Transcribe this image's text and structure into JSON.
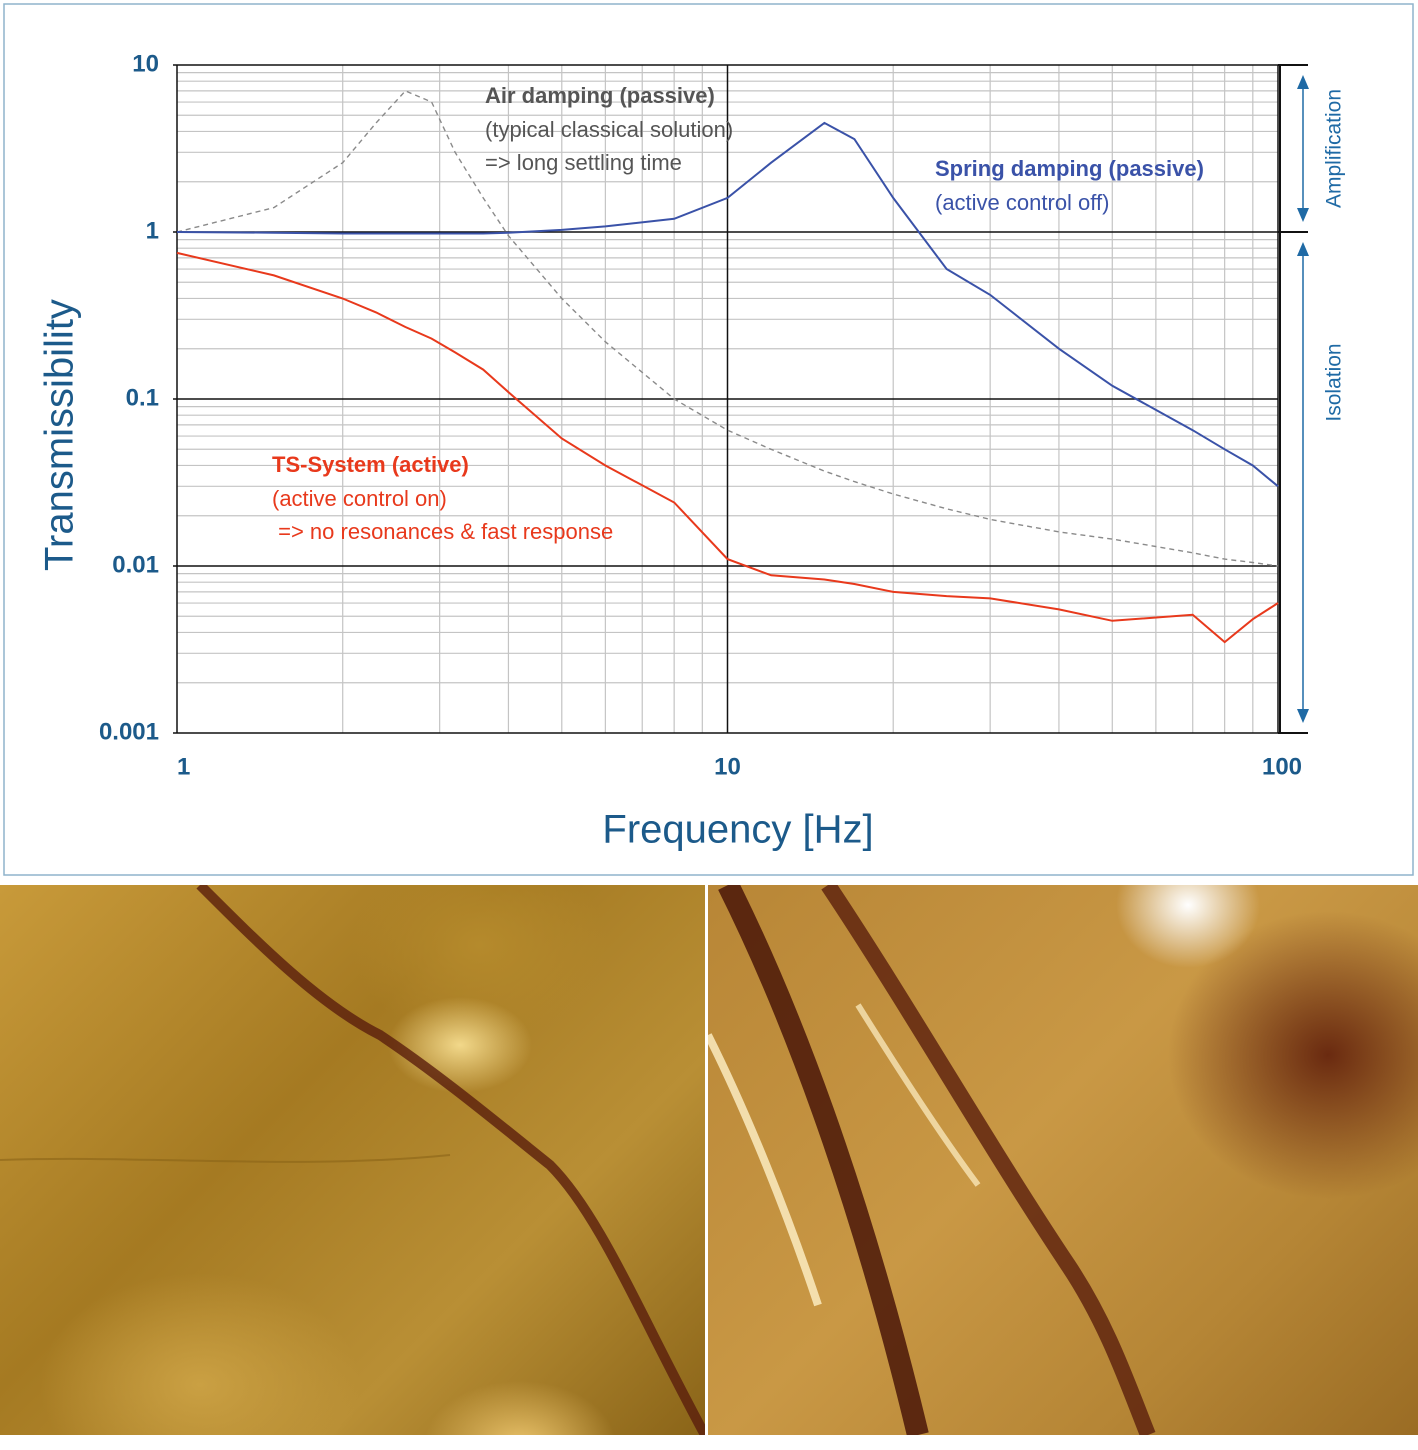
{
  "chart_data": {
    "type": "line",
    "xlabel": "Frequency [Hz]",
    "ylabel": "Transmissibility",
    "log_x": true,
    "log_y": true,
    "grid": true,
    "xlim": [
      1,
      100
    ],
    "ylim": [
      0.001,
      10
    ],
    "xticks": [
      1,
      10,
      100
    ],
    "yticks": [
      0.001,
      0.01,
      0.1,
      1,
      10
    ],
    "x": [
      1,
      1.5,
      2,
      2.3,
      2.6,
      2.9,
      3.2,
      3.6,
      4,
      5,
      6,
      8,
      10,
      12,
      15,
      17,
      20,
      25,
      30,
      40,
      50,
      70,
      80,
      90,
      100
    ],
    "series": [
      {
        "name": "Air damping (passive)",
        "color": "#8a8a8a",
        "dashed": true,
        "notes": [
          "(typical classical solution)",
          "=> long settling time"
        ],
        "values": [
          1.0,
          1.4,
          2.6,
          4.5,
          7.0,
          6.0,
          3.0,
          1.6,
          0.95,
          0.4,
          0.22,
          0.1,
          0.065,
          0.05,
          0.037,
          0.032,
          0.027,
          0.022,
          0.019,
          0.016,
          0.0145,
          0.012,
          0.011,
          0.0105,
          0.01
        ]
      },
      {
        "name": "Spring damping (passive)",
        "color": "#3a52a8",
        "dashed": false,
        "notes": [
          "(active control off)"
        ],
        "values": [
          1,
          0.99,
          0.98,
          0.98,
          0.98,
          0.98,
          0.98,
          0.98,
          0.99,
          1.03,
          1.08,
          1.2,
          1.6,
          2.6,
          4.5,
          3.6,
          1.6,
          0.6,
          0.42,
          0.2,
          0.12,
          0.065,
          0.05,
          0.04,
          0.03
        ]
      },
      {
        "name": "TS-System (active)",
        "color": "#e8391c",
        "dashed": false,
        "notes": [
          "(active control on)",
          " => no resonances & fast response"
        ],
        "values": [
          0.75,
          0.55,
          0.4,
          0.33,
          0.27,
          0.23,
          0.19,
          0.15,
          0.11,
          0.058,
          0.04,
          0.024,
          0.011,
          0.0088,
          0.0083,
          0.0078,
          0.007,
          0.0066,
          0.0064,
          0.0055,
          0.0047,
          0.0051,
          0.0035,
          0.0048,
          0.006
        ]
      }
    ],
    "regions": [
      {
        "label": "Amplification",
        "range": [
          1,
          10
        ]
      },
      {
        "label": "Isolation",
        "range": [
          0.001,
          1
        ]
      }
    ]
  }
}
